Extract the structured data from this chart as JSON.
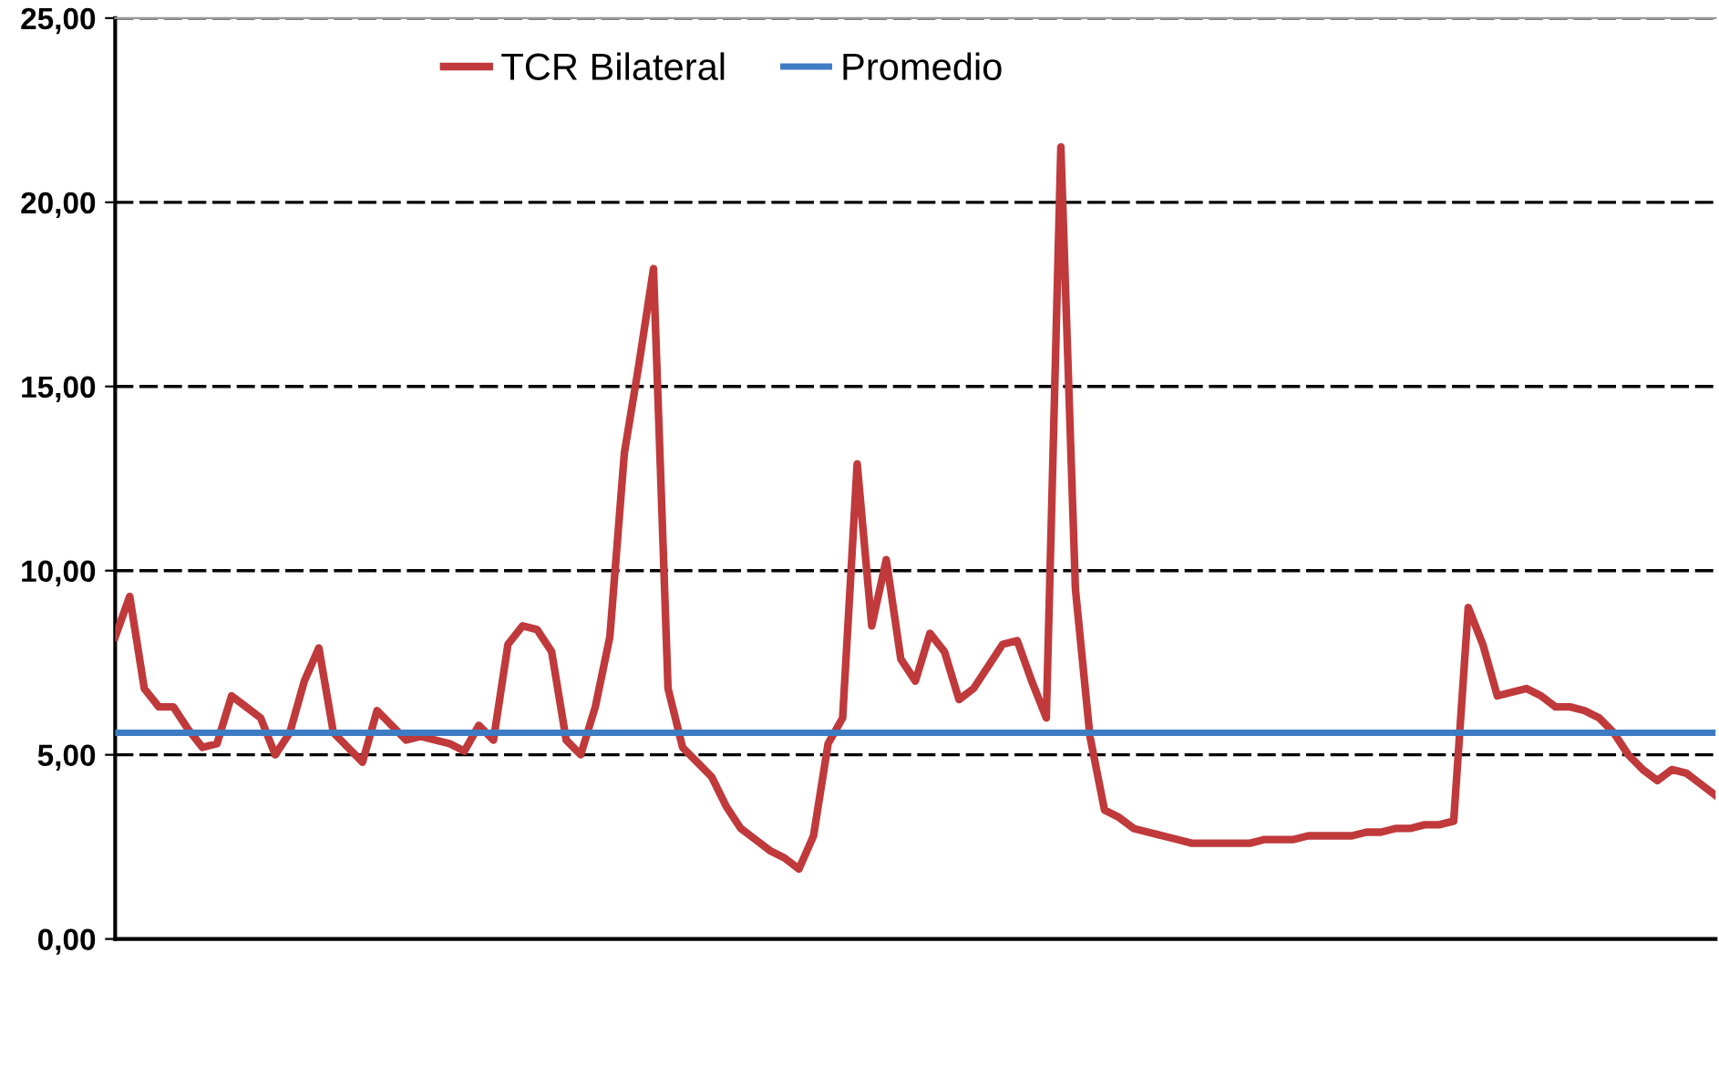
{
  "chart_data": {
    "type": "line",
    "categories": [
      null,
      null,
      null,
      null,
      null,
      null,
      null,
      null,
      null,
      null,
      null,
      null,
      null,
      null,
      null,
      null,
      null,
      null,
      null,
      null,
      null,
      null,
      null,
      null,
      null,
      null,
      null,
      null,
      null,
      null,
      null,
      null,
      null,
      null,
      null,
      null,
      null,
      null,
      null,
      null,
      null,
      null,
      null,
      null,
      null,
      null,
      null,
      null,
      null,
      null,
      null,
      null,
      null,
      null,
      null,
      null,
      null,
      null,
      null,
      null,
      null,
      null,
      null,
      null,
      null,
      null,
      null,
      null,
      null,
      null,
      null,
      null,
      null,
      null,
      null,
      null,
      null,
      null,
      null,
      null,
      null,
      null,
      null,
      null,
      null,
      null,
      null,
      null,
      null,
      null,
      null,
      null,
      null,
      null,
      null,
      null,
      null,
      null,
      null,
      null,
      null,
      null,
      null,
      null,
      null,
      null,
      null,
      null,
      null,
      null,
      null
    ],
    "series": [
      {
        "name": "TCR Bilateral",
        "color": "#c0393b",
        "values": [
          8.2,
          9.3,
          6.8,
          6.3,
          6.3,
          5.7,
          5.2,
          5.3,
          6.6,
          6.3,
          6.0,
          5.0,
          5.6,
          7.0,
          7.9,
          5.6,
          5.2,
          4.8,
          6.2,
          5.8,
          5.4,
          5.5,
          5.4,
          5.3,
          5.1,
          5.8,
          5.4,
          8.0,
          8.5,
          8.4,
          7.8,
          5.4,
          5.0,
          6.3,
          8.2,
          13.2,
          15.6,
          18.2,
          6.8,
          5.2,
          4.8,
          4.4,
          3.6,
          3.0,
          2.7,
          2.4,
          2.2,
          1.9,
          2.8,
          5.3,
          6.0,
          12.9,
          8.5,
          10.3,
          7.6,
          7.0,
          8.3,
          7.8,
          6.5,
          6.8,
          7.4,
          8.0,
          8.1,
          7.0,
          6.0,
          21.5,
          9.5,
          5.5,
          3.5,
          3.3,
          3.0,
          2.9,
          2.8,
          2.7,
          2.6,
          2.6,
          2.6,
          2.6,
          2.6,
          2.7,
          2.7,
          2.7,
          2.8,
          2.8,
          2.8,
          2.8,
          2.9,
          2.9,
          3.0,
          3.0,
          3.1,
          3.1,
          3.2,
          9.0,
          8.0,
          6.6,
          6.7,
          6.8,
          6.6,
          6.3,
          6.3,
          6.2,
          6.0,
          5.6,
          5.0,
          4.6,
          4.3,
          4.6,
          4.5,
          4.2,
          3.9
        ]
      },
      {
        "name": "Promedio",
        "color": "#3d7cc2",
        "values": [
          5.6,
          5.6,
          5.6,
          5.6,
          5.6,
          5.6,
          5.6,
          5.6,
          5.6,
          5.6,
          5.6,
          5.6,
          5.6,
          5.6,
          5.6,
          5.6,
          5.6,
          5.6,
          5.6,
          5.6,
          5.6,
          5.6,
          5.6,
          5.6,
          5.6,
          5.6,
          5.6,
          5.6,
          5.6,
          5.6,
          5.6,
          5.6,
          5.6,
          5.6,
          5.6,
          5.6,
          5.6,
          5.6,
          5.6,
          5.6,
          5.6,
          5.6,
          5.6,
          5.6,
          5.6,
          5.6,
          5.6,
          5.6,
          5.6,
          5.6,
          5.6,
          5.6,
          5.6,
          5.6,
          5.6,
          5.6,
          5.6,
          5.6,
          5.6,
          5.6,
          5.6,
          5.6,
          5.6,
          5.6,
          5.6,
          5.6,
          5.6,
          5.6,
          5.6,
          5.6,
          5.6,
          5.6,
          5.6,
          5.6,
          5.6,
          5.6,
          5.6,
          5.6,
          5.6,
          5.6,
          5.6,
          5.6,
          5.6,
          5.6,
          5.6,
          5.6,
          5.6,
          5.6,
          5.6,
          5.6,
          5.6,
          5.6,
          5.6,
          5.6,
          5.6,
          5.6,
          5.6,
          5.6,
          5.6,
          5.6,
          5.6,
          5.6,
          5.6,
          5.6,
          5.6,
          5.6,
          5.6,
          5.6,
          5.6,
          5.6,
          5.6
        ]
      }
    ],
    "ylim": [
      0,
      25
    ],
    "yticks": [
      {
        "value": 0,
        "label": "0,00"
      },
      {
        "value": 5,
        "label": "5,00"
      },
      {
        "value": 10,
        "label": "10,00"
      },
      {
        "value": 15,
        "label": "15,00"
      },
      {
        "value": 20,
        "label": "20,00"
      },
      {
        "value": 25,
        "label": "25,00"
      }
    ],
    "grid": "y",
    "legend": "top",
    "tick_labels": "y",
    "line_style": "solid",
    "marker": "none"
  }
}
